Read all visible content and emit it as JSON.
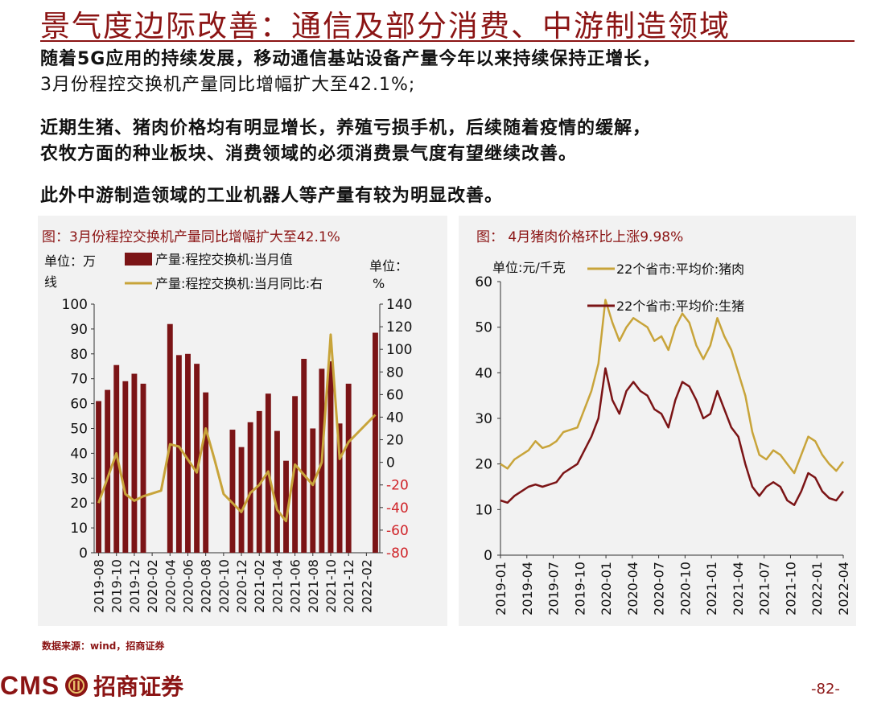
{
  "page": {
    "title": "景气度边际改善：通信及部分消费、中游制造领域",
    "paragraph1_line1": "随着5G应用的持续发展，移动通信基站设备产量今年以来持续保持正增长，",
    "paragraph1_line2": "3月份程控交换机产量同比增幅扩大至42.1%;",
    "paragraph2_line1": "近期生猪、猪肉价格均有明显增长，养殖亏损手机，后续随着疫情的缓解，",
    "paragraph2_line2": "农牧方面的种业板块、消费领域的必须消费景气度有望继续改善。",
    "paragraph3": "此外中游制造领域的工业机器人等产量有较为明显改善。",
    "source": "数据来源：wind，招商证券",
    "logo_text": "CMS",
    "logo_cn": "招商证券",
    "page_number": "-82-"
  },
  "colors": {
    "accent": "#8b1414",
    "bar": "#7b1416",
    "gold": "#c8a43a",
    "chart_bg": "#f2f2f2"
  },
  "chart_data": [
    {
      "type": "bar+line",
      "title": "图：3月份程控交换机产量同比增幅扩大至42.1%",
      "left_unit_line1": "单位：万",
      "left_unit_line2": "线",
      "right_unit_line1": "单位：",
      "right_unit_line2": "%",
      "legend_bar": "产量:程控交换机:当月值",
      "legend_line": "产量:程控交换机:当月同比:右",
      "categories": [
        "2019-08",
        "2019-09",
        "2019-10",
        "2019-11",
        "2019-12",
        "2020-01",
        "2020-02",
        "2020-03",
        "2020-04",
        "2020-05",
        "2020-06",
        "2020-07",
        "2020-08",
        "2020-09",
        "2020-10",
        "2020-11",
        "2020-12",
        "2021-01",
        "2021-02",
        "2021-03",
        "2021-04",
        "2021-05",
        "2021-06",
        "2021-07",
        "2021-08",
        "2021-09",
        "2021-10",
        "2021-11",
        "2021-12",
        "2022-01",
        "2022-02",
        "2022-03"
      ],
      "xtick_labels": [
        "2019-08",
        "2019-10",
        "2019-12",
        "2020-02",
        "2020-04",
        "2020-06",
        "2020-08",
        "2020-10",
        "2020-12",
        "2021-02",
        "2021-04",
        "2021-06",
        "2021-08",
        "2021-10",
        "2021-12",
        "2022-02"
      ],
      "bar_values": [
        61,
        65.5,
        75.5,
        69,
        72,
        68,
        null,
        92,
        79.5,
        80,
        76,
        64.5,
        null,
        49.5,
        42.5,
        52.5,
        57,
        64,
        49,
        37,
        63,
        78,
        50,
        74,
        77,
        52,
        68,
        88.5
      ],
      "bar_categories": [
        "2019-08",
        "2019-09",
        "2019-10",
        "2019-11",
        "2019-12",
        "2020-01",
        "2020-03",
        "2020-04",
        "2020-05",
        "2020-06",
        "2020-07",
        "2020-08",
        "2020-10",
        "2020-11",
        "2020-12",
        "2021-01",
        "2021-02",
        "2021-03",
        "2021-04",
        "2021-05",
        "2021-06",
        "2021-07",
        "2021-08",
        "2021-09",
        "2021-10",
        "2021-11",
        "2021-12",
        "2022-03"
      ],
      "line_values": [
        -36,
        8,
        -28,
        -34,
        -30,
        -25,
        16,
        14,
        -9,
        30,
        2,
        -28,
        -44,
        -27,
        -20,
        -8,
        -42,
        -52,
        -2,
        -20,
        0,
        113,
        3,
        18,
        42.1
      ],
      "line_categories": [
        "2019-08",
        "2019-10",
        "2019-11",
        "2019-12",
        "2020-01",
        "2020-03",
        "2020-04",
        "2020-05",
        "2020-07",
        "2020-08",
        "2020-09",
        "2020-10",
        "2020-12",
        "2021-01",
        "2021-02",
        "2021-03",
        "2021-04",
        "2021-05",
        "2021-06",
        "2021-08",
        "2021-09",
        "2021-10",
        "2021-11",
        "2021-12",
        "2022-03"
      ],
      "y_left_ticks": [
        "0",
        "10",
        "20",
        "30",
        "40",
        "50",
        "60",
        "70",
        "80",
        "90",
        "100"
      ],
      "y_left_range": [
        0,
        100
      ],
      "y_right_ticks": [
        "-80",
        "-60",
        "-40",
        "-20",
        "0",
        "20",
        "40",
        "60",
        "80",
        "100",
        "120",
        "140"
      ],
      "y_right_range": [
        -80,
        140
      ]
    },
    {
      "type": "line",
      "title": "图：  4月猪肉价格环比上涨9.98%",
      "unit": "单位:元/千克",
      "series": [
        {
          "name": "22个省市:平均价:猪肉",
          "color": "#c8a43a",
          "values": [
            [
              0,
              20
            ],
            [
              1,
              19
            ],
            [
              2,
              21
            ],
            [
              3,
              22
            ],
            [
              4,
              23
            ],
            [
              5,
              25
            ],
            [
              6,
              23.5
            ],
            [
              7,
              24
            ],
            [
              8,
              25
            ],
            [
              9,
              27
            ],
            [
              10,
              27.5
            ],
            [
              11,
              28
            ],
            [
              12,
              32
            ],
            [
              13,
              36
            ],
            [
              14,
              42
            ],
            [
              15,
              56
            ],
            [
              16,
              51
            ],
            [
              17,
              47
            ],
            [
              18,
              50
            ],
            [
              19,
              52
            ],
            [
              20,
              51
            ],
            [
              21,
              50
            ],
            [
              22,
              47
            ],
            [
              23,
              48
            ],
            [
              24,
              45
            ],
            [
              25,
              50
            ],
            [
              26,
              53
            ],
            [
              27,
              51
            ],
            [
              28,
              46
            ],
            [
              29,
              43
            ],
            [
              30,
              46
            ],
            [
              31,
              52
            ],
            [
              32,
              48
            ],
            [
              33,
              45
            ],
            [
              34,
              40
            ],
            [
              35,
              35
            ],
            [
              36,
              27
            ],
            [
              37,
              22
            ],
            [
              38,
              21
            ],
            [
              39,
              23
            ],
            [
              40,
              22
            ],
            [
              41,
              20
            ],
            [
              42,
              18
            ],
            [
              43,
              22
            ],
            [
              44,
              26
            ],
            [
              45,
              25
            ],
            [
              46,
              22
            ],
            [
              47,
              20
            ],
            [
              48,
              18.5
            ],
            [
              49,
              20.5
            ]
          ]
        },
        {
          "name": "22个省市:平均价:生猪",
          "color": "#7b1416",
          "values": [
            [
              0,
              12
            ],
            [
              1,
              11.5
            ],
            [
              2,
              13
            ],
            [
              3,
              14
            ],
            [
              4,
              15
            ],
            [
              5,
              15.5
            ],
            [
              6,
              15
            ],
            [
              7,
              15.5
            ],
            [
              8,
              16
            ],
            [
              9,
              18
            ],
            [
              10,
              19
            ],
            [
              11,
              20
            ],
            [
              12,
              23
            ],
            [
              13,
              26
            ],
            [
              14,
              30
            ],
            [
              15,
              41
            ],
            [
              16,
              34
            ],
            [
              17,
              31
            ],
            [
              18,
              36
            ],
            [
              19,
              38
            ],
            [
              20,
              36
            ],
            [
              21,
              35
            ],
            [
              22,
              32
            ],
            [
              23,
              31
            ],
            [
              24,
              28
            ],
            [
              25,
              34
            ],
            [
              26,
              38
            ],
            [
              27,
              37
            ],
            [
              28,
              34
            ],
            [
              29,
              30
            ],
            [
              30,
              31
            ],
            [
              31,
              36
            ],
            [
              32,
              32
            ],
            [
              33,
              28
            ],
            [
              34,
              26
            ],
            [
              35,
              20
            ],
            [
              36,
              15
            ],
            [
              37,
              13
            ],
            [
              38,
              15
            ],
            [
              39,
              16
            ],
            [
              40,
              15
            ],
            [
              41,
              12
            ],
            [
              42,
              11
            ],
            [
              43,
              14
            ],
            [
              44,
              18
            ],
            [
              45,
              17
            ],
            [
              46,
              14
            ],
            [
              47,
              12.5
            ],
            [
              48,
              12
            ],
            [
              49,
              14
            ]
          ]
        }
      ],
      "xtick_labels": [
        "2019-01",
        "2019-04",
        "2019-07",
        "2019-10",
        "2020-01",
        "2020-04",
        "2020-07",
        "2020-10",
        "2021-01",
        "2021-04",
        "2021-07",
        "2021-10",
        "2022-01",
        "2022-04"
      ],
      "y_ticks": [
        "0",
        "10",
        "20",
        "30",
        "40",
        "50",
        "60"
      ],
      "y_range": [
        0,
        60
      ],
      "x_range": [
        0,
        49
      ]
    }
  ]
}
